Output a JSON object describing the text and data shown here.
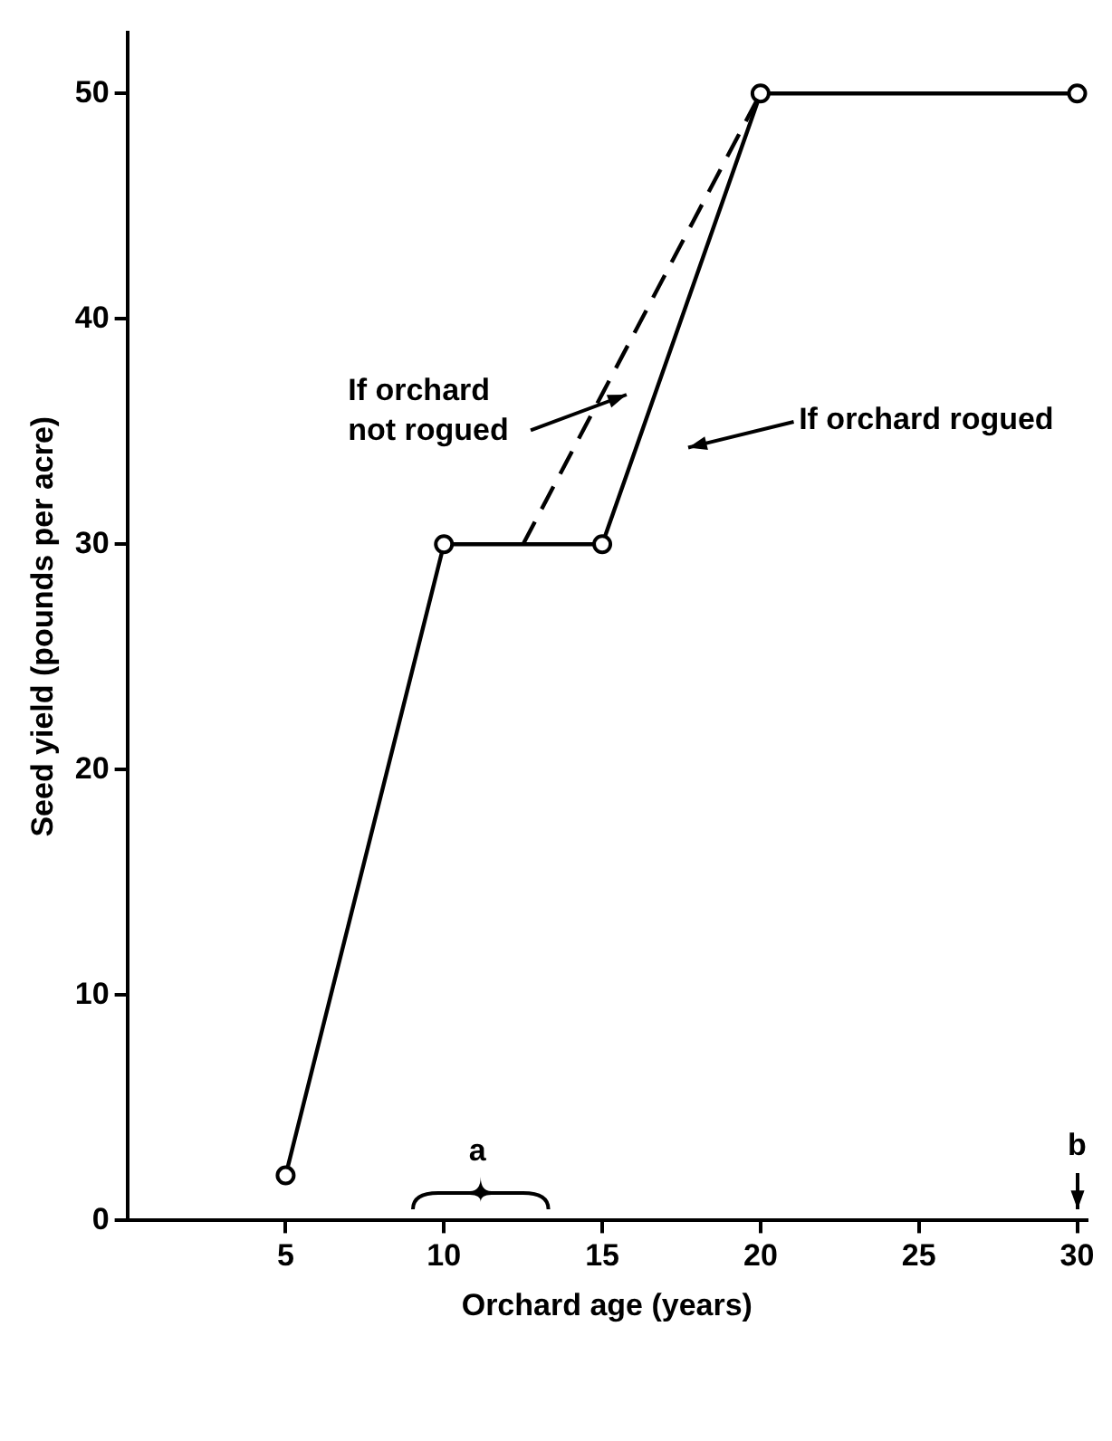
{
  "chart_data": {
    "type": "line",
    "xlabel": "Orchard age (years)",
    "ylabel": "Seed yield (pounds per acre)",
    "xlim": [
      0,
      30.3
    ],
    "xticks": [
      5,
      10,
      15,
      20,
      25,
      30
    ],
    "ylim": [
      0,
      52.7
    ],
    "yticks": [
      0,
      10,
      20,
      30,
      40,
      50
    ],
    "grid": false,
    "series": [
      {
        "color": "#000000",
        "x": [
          12.5,
          20
        ],
        "values": [
          30,
          50
        ],
        "line_style": "dashed"
      },
      {
        "color": "#000000",
        "x": [
          5,
          10,
          15,
          20,
          30
        ],
        "values": [
          2,
          30,
          30,
          50,
          50
        ],
        "line_style": "solid",
        "marker": "circle"
      }
    ],
    "annotations": [
      "If orchard not rogued",
      "If orchard rogued",
      "a",
      "b"
    ]
  }
}
